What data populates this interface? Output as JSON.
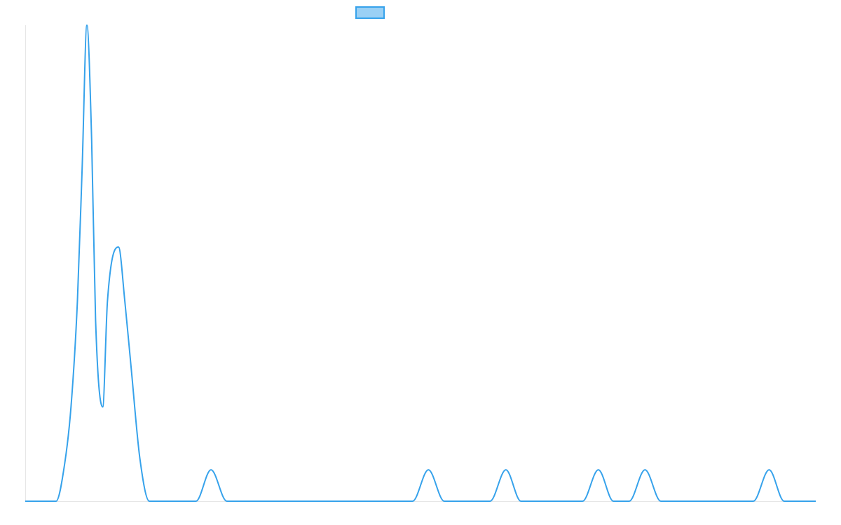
{
  "chart_data": {
    "type": "line",
    "title": "",
    "xlabel": "",
    "ylabel": "",
    "grid": false,
    "legend": {
      "placement": "top-center",
      "entries": [
        {
          "name": "",
          "color": "#36a2eb",
          "fill": "#9ad0f5"
        }
      ]
    },
    "xlim": [
      0,
      1
    ],
    "ylim": [
      0,
      1
    ],
    "series": [
      {
        "name": "",
        "color": "#36a2eb",
        "points": [
          {
            "x": 0.0,
            "y": 0.0
          },
          {
            "x": 0.039,
            "y": 0.0
          },
          {
            "x": 0.05,
            "y": 0.08
          },
          {
            "x": 0.058,
            "y": 0.2
          },
          {
            "x": 0.066,
            "y": 0.42
          },
          {
            "x": 0.072,
            "y": 0.7
          },
          {
            "x": 0.078,
            "y": 1.0
          },
          {
            "x": 0.084,
            "y": 0.76
          },
          {
            "x": 0.089,
            "y": 0.38
          },
          {
            "x": 0.098,
            "y": 0.198
          },
          {
            "x": 0.104,
            "y": 0.42
          },
          {
            "x": 0.118,
            "y": 0.534
          },
          {
            "x": 0.126,
            "y": 0.42
          },
          {
            "x": 0.134,
            "y": 0.28
          },
          {
            "x": 0.145,
            "y": 0.09
          },
          {
            "x": 0.157,
            "y": 0.0
          },
          {
            "x": 0.216,
            "y": 0.0
          },
          {
            "x": 0.235,
            "y": 0.066
          },
          {
            "x": 0.255,
            "y": 0.0
          },
          {
            "x": 0.49,
            "y": 0.0
          },
          {
            "x": 0.51,
            "y": 0.066
          },
          {
            "x": 0.53,
            "y": 0.0
          },
          {
            "x": 0.588,
            "y": 0.0
          },
          {
            "x": 0.608,
            "y": 0.066
          },
          {
            "x": 0.627,
            "y": 0.0
          },
          {
            "x": 0.705,
            "y": 0.0
          },
          {
            "x": 0.725,
            "y": 0.066
          },
          {
            "x": 0.744,
            "y": 0.0
          },
          {
            "x": 0.764,
            "y": 0.0
          },
          {
            "x": 0.784,
            "y": 0.066
          },
          {
            "x": 0.804,
            "y": 0.0
          },
          {
            "x": 0.921,
            "y": 0.0
          },
          {
            "x": 0.941,
            "y": 0.066
          },
          {
            "x": 0.96,
            "y": 0.0
          },
          {
            "x": 1.0,
            "y": 0.0
          }
        ]
      }
    ]
  }
}
